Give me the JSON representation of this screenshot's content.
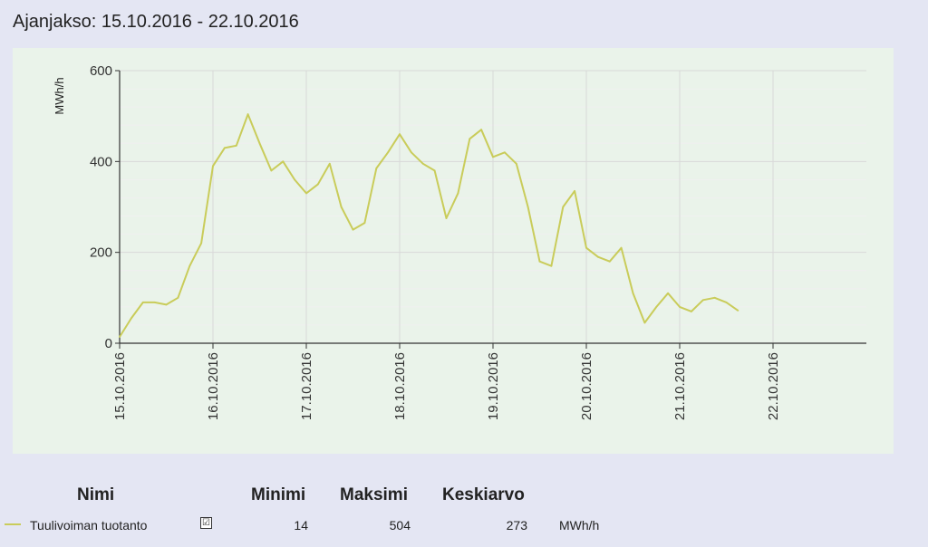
{
  "period_text": "Ajanjakso: 15.10.2016 - 22.10.2016",
  "chart_data": {
    "type": "line",
    "ylabel": "MWh/h",
    "ylim": [
      0,
      600
    ],
    "yticks": [
      "0",
      "200",
      "400",
      "600"
    ],
    "x_start": "15.10.2016",
    "x_end": "23.10.2016",
    "xticks": [
      "15.10.2016",
      "16.10.2016",
      "17.10.2016",
      "18.10.2016",
      "19.10.2016",
      "20.10.2016",
      "21.10.2016",
      "22.10.2016"
    ],
    "grid": true,
    "series": [
      {
        "name": "Tuulivoiman tuotanto",
        "color": "#c9cc5a",
        "x": [
          "15.10.2016 00:00",
          "15.10.2016 03:00",
          "15.10.2016 06:00",
          "15.10.2016 09:00",
          "15.10.2016 12:00",
          "15.10.2016 15:00",
          "15.10.2016 18:00",
          "15.10.2016 21:00",
          "16.10.2016 00:00",
          "16.10.2016 03:00",
          "16.10.2016 06:00",
          "16.10.2016 09:00",
          "16.10.2016 12:00",
          "16.10.2016 15:00",
          "16.10.2016 18:00",
          "16.10.2016 21:00",
          "17.10.2016 00:00",
          "17.10.2016 03:00",
          "17.10.2016 06:00",
          "17.10.2016 09:00",
          "17.10.2016 12:00",
          "17.10.2016 15:00",
          "17.10.2016 18:00",
          "17.10.2016 21:00",
          "18.10.2016 00:00",
          "18.10.2016 03:00",
          "18.10.2016 06:00",
          "18.10.2016 09:00",
          "18.10.2016 12:00",
          "18.10.2016 15:00",
          "18.10.2016 18:00",
          "18.10.2016 21:00",
          "19.10.2016 00:00",
          "19.10.2016 03:00",
          "19.10.2016 06:00",
          "19.10.2016 09:00",
          "19.10.2016 12:00",
          "19.10.2016 15:00",
          "19.10.2016 18:00",
          "19.10.2016 21:00",
          "20.10.2016 00:00",
          "20.10.2016 03:00",
          "20.10.2016 06:00",
          "20.10.2016 09:00",
          "20.10.2016 12:00",
          "20.10.2016 15:00",
          "20.10.2016 18:00",
          "20.10.2016 21:00",
          "21.10.2016 00:00",
          "21.10.2016 03:00",
          "21.10.2016 06:00",
          "21.10.2016 09:00",
          "21.10.2016 12:00",
          "21.10.2016 15:00"
        ],
        "values": [
          14,
          55,
          90,
          90,
          85,
          100,
          170,
          220,
          390,
          430,
          435,
          504,
          440,
          380,
          400,
          360,
          330,
          350,
          395,
          300,
          250,
          265,
          385,
          420,
          460,
          420,
          395,
          380,
          275,
          330,
          450,
          470,
          410,
          420,
          395,
          300,
          180,
          170,
          300,
          335,
          210,
          190,
          180,
          210,
          110,
          45,
          80,
          110,
          80,
          70,
          95,
          100,
          90,
          72
        ]
      }
    ]
  },
  "summary": {
    "headers": {
      "name": "Nimi",
      "min": "Minimi",
      "max": "Maksimi",
      "avg": "Keskiarvo"
    },
    "row": {
      "name": "Tuulivoiman tuotanto",
      "checked": true,
      "checkbox_glyph": "☑",
      "min": "14",
      "max": "504",
      "avg": "273",
      "unit": "MWh/h"
    }
  }
}
